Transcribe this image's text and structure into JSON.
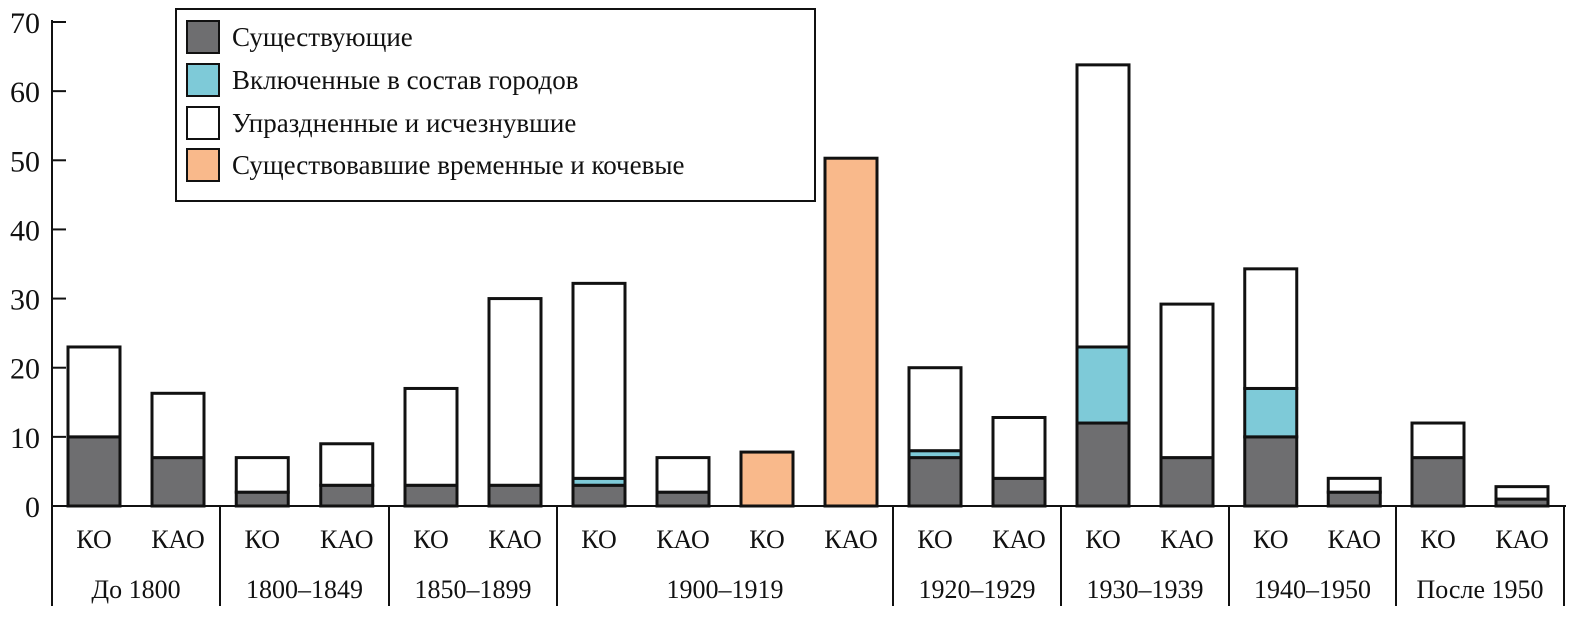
{
  "chart_data": {
    "type": "bar",
    "stacked": true,
    "ylim": [
      0,
      70
    ],
    "yticks": [
      0,
      10,
      20,
      30,
      40,
      50,
      60,
      70
    ],
    "legend_position": "top-left",
    "grid": false,
    "series": [
      {
        "key": "existing",
        "name": "Существующие",
        "color": "#6e6e70"
      },
      {
        "key": "merged",
        "name": "Включенные в состав городов",
        "color": "#7ecad8"
      },
      {
        "key": "abolished",
        "name": "Упраздненные и исчезнувшие",
        "color": "#ffffff"
      },
      {
        "key": "temporary",
        "name": "Существовавшие временные и кочевые",
        "color": "#f9b98b"
      }
    ],
    "groups": [
      {
        "label": "До 1800",
        "bars": [
          {
            "label": "КО",
            "existing": 10,
            "merged": 0,
            "abolished": 13,
            "temporary": 0
          },
          {
            "label": "КАО",
            "existing": 7,
            "merged": 0,
            "abolished": 9.3,
            "temporary": 0
          }
        ]
      },
      {
        "label": "1800–1849",
        "bars": [
          {
            "label": "КО",
            "existing": 2,
            "merged": 0,
            "abolished": 5,
            "temporary": 0
          },
          {
            "label": "КАО",
            "existing": 3,
            "merged": 0,
            "abolished": 6,
            "temporary": 0
          }
        ]
      },
      {
        "label": "1850–1899",
        "bars": [
          {
            "label": "КО",
            "existing": 3,
            "merged": 0,
            "abolished": 14,
            "temporary": 0
          },
          {
            "label": "КАО",
            "existing": 3,
            "merged": 0,
            "abolished": 27,
            "temporary": 0
          }
        ]
      },
      {
        "label": "1900–1919",
        "bars": [
          {
            "label": "КО",
            "existing": 3,
            "merged": 1,
            "abolished": 28.2,
            "temporary": 0
          },
          {
            "label": "КАО",
            "existing": 2,
            "merged": 0,
            "abolished": 5,
            "temporary": 0
          },
          {
            "label": "КО",
            "existing": 0,
            "merged": 0,
            "abolished": 0,
            "temporary": 7.8
          },
          {
            "label": "КАО",
            "existing": 0,
            "merged": 0,
            "abolished": 0,
            "temporary": 50.3
          }
        ]
      },
      {
        "label": "1920–1929",
        "bars": [
          {
            "label": "КО",
            "existing": 7,
            "merged": 1,
            "abolished": 12,
            "temporary": 0
          },
          {
            "label": "КАО",
            "existing": 4,
            "merged": 0,
            "abolished": 8.8,
            "temporary": 0
          }
        ]
      },
      {
        "label": "1930–1939",
        "bars": [
          {
            "label": "КО",
            "existing": 12,
            "merged": 11,
            "abolished": 40.8,
            "temporary": 0
          },
          {
            "label": "КАО",
            "existing": 7,
            "merged": 0,
            "abolished": 22.2,
            "temporary": 0
          }
        ]
      },
      {
        "label": "1940–1950",
        "bars": [
          {
            "label": "КО",
            "existing": 10,
            "merged": 7,
            "abolished": 17.3,
            "temporary": 0
          },
          {
            "label": "КАО",
            "existing": 2,
            "merged": 0,
            "abolished": 2,
            "temporary": 0
          }
        ]
      },
      {
        "label": "После 1950",
        "bars": [
          {
            "label": "КО",
            "existing": 7,
            "merged": 0,
            "abolished": 5,
            "temporary": 0
          },
          {
            "label": "КАО",
            "existing": 1,
            "merged": 0,
            "abolished": 1.8,
            "temporary": 0
          }
        ]
      }
    ]
  }
}
